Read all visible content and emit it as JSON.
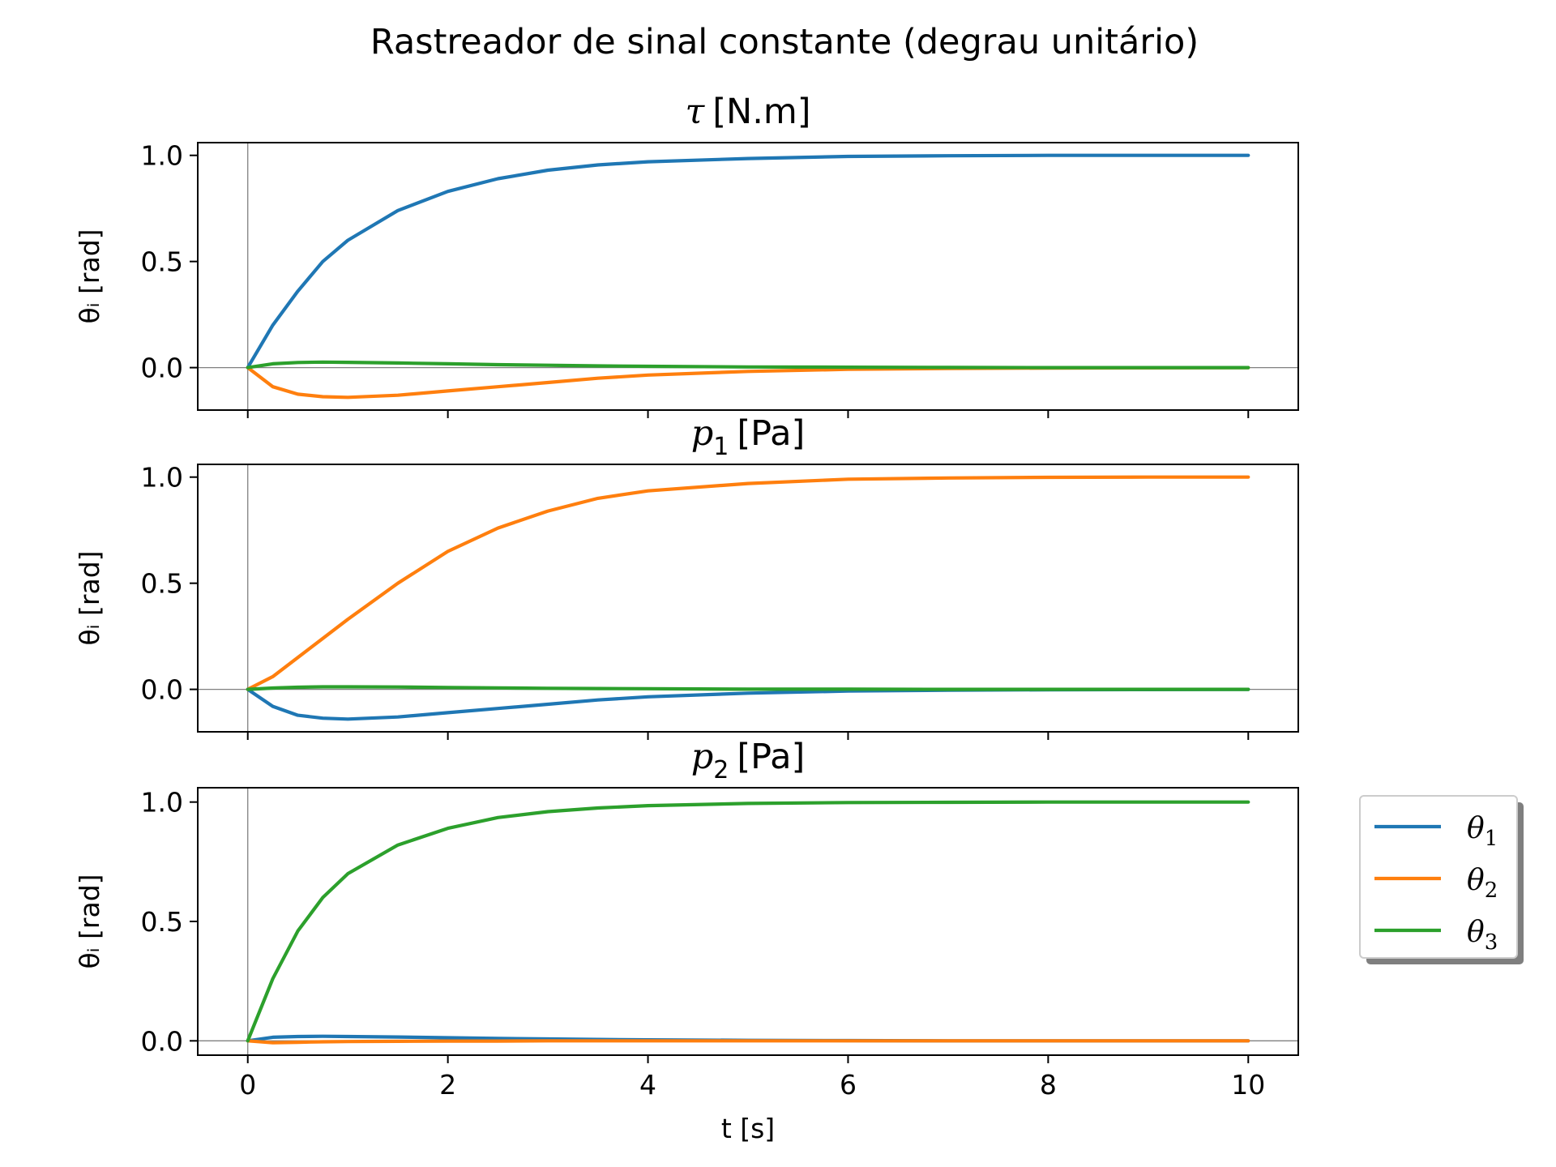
{
  "title": "Rastreador de sinal constante (degrau unitário)",
  "colors": {
    "theta1": "#1f77b4",
    "theta2": "#ff7f0e",
    "theta3": "#2ca02c",
    "zero_line": "#808080"
  },
  "legend": {
    "placement": "right, outside",
    "entries": [
      {
        "symbol": "θ",
        "sub": "1",
        "color": "#1f77b4"
      },
      {
        "symbol": "θ",
        "sub": "2",
        "color": "#ff7f0e"
      },
      {
        "symbol": "θ",
        "sub": "3",
        "color": "#2ca02c"
      }
    ]
  },
  "chart_data": [
    {
      "type": "line",
      "title_symbol": "τ",
      "title_sub": "",
      "title_unit": "[N.m]",
      "ylabel": "θᵢ [rad]",
      "xlabel": "",
      "xlim": [
        -0.5,
        10.5
      ],
      "ylim": [
        -0.2,
        1.06
      ],
      "x_ticks": [
        0,
        2,
        4,
        6,
        8,
        10
      ],
      "y_ticks": [
        "0.0",
        "0.5",
        "1.0"
      ],
      "show_x_tick_labels": false,
      "x": [
        0,
        0.25,
        0.5,
        0.75,
        1,
        1.5,
        2,
        2.5,
        3,
        3.5,
        4,
        5,
        6,
        7,
        8,
        9,
        10
      ],
      "series": [
        {
          "key": "theta1",
          "values": [
            0,
            0.2,
            0.36,
            0.5,
            0.6,
            0.74,
            0.83,
            0.89,
            0.93,
            0.955,
            0.97,
            0.985,
            0.995,
            0.998,
            1.0,
            1.0,
            1.0
          ]
        },
        {
          "key": "theta2",
          "values": [
            0,
            -0.09,
            -0.125,
            -0.137,
            -0.14,
            -0.13,
            -0.11,
            -0.09,
            -0.07,
            -0.05,
            -0.035,
            -0.018,
            -0.008,
            -0.004,
            -0.002,
            -0.001,
            0
          ]
        },
        {
          "key": "theta3",
          "values": [
            0,
            0.018,
            0.024,
            0.026,
            0.025,
            0.022,
            0.018,
            0.014,
            0.011,
            0.008,
            0.006,
            0.003,
            0.002,
            0.001,
            0,
            0,
            0
          ]
        }
      ]
    },
    {
      "type": "line",
      "title_symbol": "p",
      "title_sub": "1",
      "title_unit": "[Pa]",
      "ylabel": "θᵢ [rad]",
      "xlabel": "",
      "xlim": [
        -0.5,
        10.5
      ],
      "ylim": [
        -0.2,
        1.06
      ],
      "x_ticks": [
        0,
        2,
        4,
        6,
        8,
        10
      ],
      "y_ticks": [
        "0.0",
        "0.5",
        "1.0"
      ],
      "show_x_tick_labels": false,
      "x": [
        0,
        0.25,
        0.5,
        0.75,
        1,
        1.5,
        2,
        2.5,
        3,
        3.5,
        4,
        5,
        6,
        7,
        8,
        9,
        10
      ],
      "series": [
        {
          "key": "theta1",
          "values": [
            0,
            -0.08,
            -0.122,
            -0.136,
            -0.14,
            -0.13,
            -0.11,
            -0.09,
            -0.07,
            -0.05,
            -0.035,
            -0.018,
            -0.008,
            -0.004,
            -0.002,
            -0.001,
            0
          ]
        },
        {
          "key": "theta2",
          "values": [
            0,
            0.06,
            0.15,
            0.24,
            0.33,
            0.5,
            0.65,
            0.76,
            0.84,
            0.9,
            0.935,
            0.97,
            0.99,
            0.996,
            0.999,
            1.0,
            1.0
          ]
        },
        {
          "key": "theta3",
          "values": [
            0,
            0.006,
            0.01,
            0.012,
            0.012,
            0.011,
            0.009,
            0.007,
            0.005,
            0.004,
            0.003,
            0.001,
            0.001,
            0,
            0,
            0,
            0
          ]
        }
      ]
    },
    {
      "type": "line",
      "title_symbol": "p",
      "title_sub": "2",
      "title_unit": "[Pa]",
      "ylabel": "θᵢ [rad]",
      "xlabel": "t [s]",
      "xlim": [
        -0.5,
        10.5
      ],
      "ylim": [
        -0.06,
        1.06
      ],
      "x_ticks": [
        0,
        2,
        4,
        6,
        8,
        10
      ],
      "y_ticks": [
        "0.0",
        "0.5",
        "1.0"
      ],
      "show_x_tick_labels": true,
      "x": [
        0,
        0.25,
        0.5,
        0.75,
        1,
        1.5,
        2,
        2.5,
        3,
        3.5,
        4,
        5,
        6,
        7,
        8,
        9,
        10
      ],
      "series": [
        {
          "key": "theta1",
          "values": [
            0,
            0.015,
            0.018,
            0.019,
            0.018,
            0.016,
            0.013,
            0.01,
            0.008,
            0.006,
            0.004,
            0.002,
            0.001,
            0,
            0,
            0,
            0
          ]
        },
        {
          "key": "theta2",
          "values": [
            0,
            -0.008,
            -0.006,
            -0.004,
            -0.003,
            -0.002,
            -0.001,
            -0.001,
            0,
            0,
            0,
            0,
            0,
            0,
            0,
            0,
            0
          ]
        },
        {
          "key": "theta3",
          "values": [
            0,
            0.26,
            0.46,
            0.6,
            0.7,
            0.82,
            0.89,
            0.935,
            0.96,
            0.975,
            0.985,
            0.994,
            0.998,
            0.999,
            1.0,
            1.0,
            1.0
          ]
        }
      ]
    }
  ]
}
